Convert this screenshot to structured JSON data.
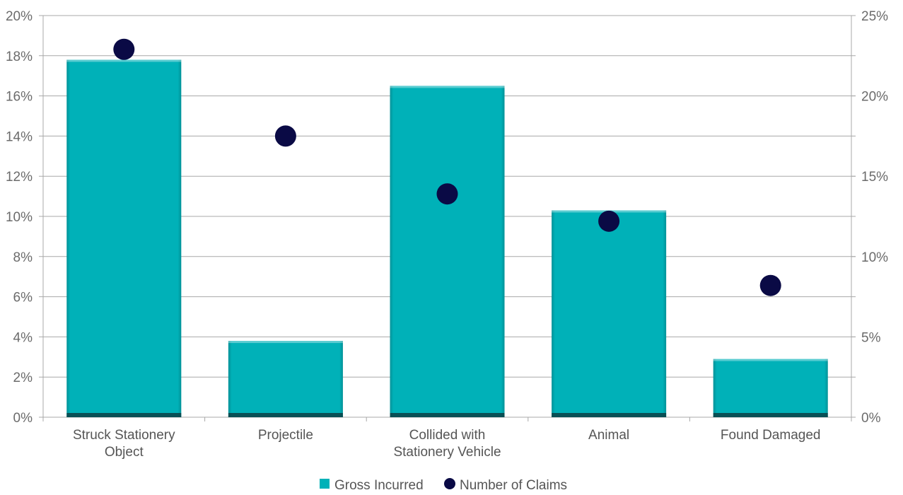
{
  "chart_data": {
    "type": "bar",
    "categories": [
      [
        "Struck Stationery",
        "Object"
      ],
      [
        "Projectile"
      ],
      [
        "Collided with",
        "Stationery Vehicle"
      ],
      [
        "Animal"
      ],
      [
        "Found Damaged"
      ]
    ],
    "series": [
      {
        "name": "Gross Incurred",
        "type": "bar",
        "axis": "left",
        "values": [
          17.8,
          3.8,
          16.5,
          10.3,
          2.9
        ],
        "color": "#00b1b8"
      },
      {
        "name": "Number of Claims",
        "type": "scatter",
        "axis": "right",
        "values": [
          22.9,
          17.5,
          13.9,
          12.2,
          8.2
        ],
        "color": "#0a0a45"
      }
    ],
    "y_left": {
      "ylim": [
        0,
        20
      ],
      "ticks": [
        "0%",
        "2%",
        "4%",
        "6%",
        "8%",
        "10%",
        "12%",
        "14%",
        "16%",
        "18%",
        "20%"
      ]
    },
    "y_right": {
      "ylim": [
        0,
        25
      ],
      "ticks": [
        "0%",
        "5%",
        "10%",
        "15%",
        "20%",
        "25%"
      ]
    },
    "grid": true,
    "legend_position": "bottom-center",
    "gridline_color": "#a8a8a8"
  }
}
